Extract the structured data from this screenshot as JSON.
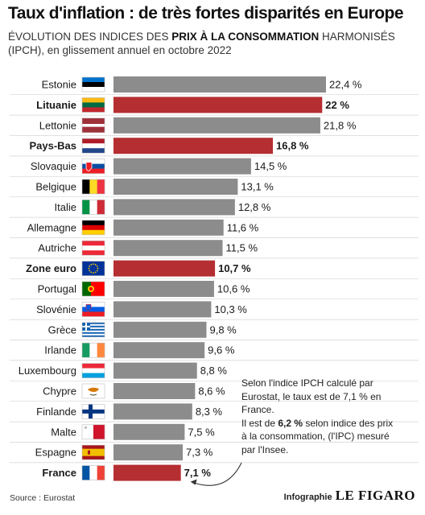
{
  "header": {
    "title": "Taux d'inflation : de très fortes disparités en Europe",
    "subtitle_pre": "ÉVOLUTION DES INDICES DES ",
    "subtitle_bold": "PRIX À LA CONSOMMATION",
    "subtitle_post": " HARMONISÉS (IPCH), en glissement annuel en octobre 2022"
  },
  "colors": {
    "grey_bar": "#8c8c8c",
    "highlight_bar": "#b52e31",
    "gridline": "#d5d5d5"
  },
  "chart_data": {
    "type": "bar",
    "orientation": "horizontal",
    "categories": [
      "Estonie",
      "Lituanie",
      "Lettonie",
      "Pays-Bas",
      "Slovaquie",
      "Belgique",
      "Italie",
      "Allemagne",
      "Autriche",
      "Zone euro",
      "Portugal",
      "Slovénie",
      "Grèce",
      "Irlande",
      "Luxembourg",
      "Chypre",
      "Finlande",
      "Malte",
      "Espagne",
      "France"
    ],
    "values": [
      22.4,
      22,
      21.8,
      16.8,
      14.5,
      13.1,
      12.8,
      11.6,
      11.5,
      10.7,
      10.6,
      10.3,
      9.8,
      9.6,
      8.8,
      8.6,
      8.3,
      7.5,
      7.3,
      7.1
    ],
    "value_labels": [
      "22,4 %",
      "22 %",
      "21,8 %",
      "16,8 %",
      "14,5 %",
      "13,1 %",
      "12,8 %",
      "11,6 %",
      "11,5 %",
      "10,7 %",
      "10,6 %",
      "10,3 %",
      "9,8 %",
      "9,6 %",
      "8,8 %",
      "8,6 %",
      "8,3 %",
      "7,5 %",
      "7,3 %",
      "7,1 %"
    ],
    "highlighted": [
      "Lituanie",
      "Pays-Bas",
      "Zone euro",
      "France"
    ],
    "flags": [
      "estonia-flag-icon",
      "lithuania-flag-icon",
      "latvia-flag-icon",
      "netherlands-flag-icon",
      "slovakia-flag-icon",
      "belgium-flag-icon",
      "italy-flag-icon",
      "germany-flag-icon",
      "austria-flag-icon",
      "eu-flag-icon",
      "portugal-flag-icon",
      "slovenia-flag-icon",
      "greece-flag-icon",
      "ireland-flag-icon",
      "luxembourg-flag-icon",
      "cyprus-flag-icon",
      "finland-flag-icon",
      "malta-flag-icon",
      "spain-flag-icon",
      "france-flag-icon"
    ],
    "xlim": [
      0,
      22.4
    ],
    "grid": "off",
    "legend": "none",
    "title": "Taux d'inflation : de très fortes disparités en Europe"
  },
  "annotation": {
    "line1": "Selon l'indice IPCH calculé par Eurostat, le taux est de 7,1 % en France.",
    "line2_pre": "Il est de ",
    "line2_bold": "6,2 %",
    "line2_post": " selon indice des prix à la consommation, (l'IPC) mesuré par l'Insee."
  },
  "footer": {
    "source": "Source : Eurostat",
    "credit_label": "Infographie",
    "credit_brand": "LE FIGARO"
  }
}
